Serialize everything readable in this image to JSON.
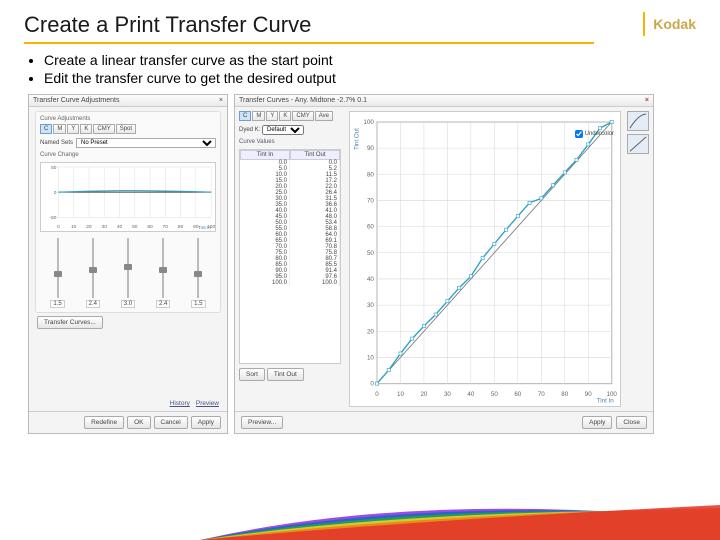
{
  "slide": {
    "title": "Create a Print Transfer Curve",
    "logo_text": "Kodak",
    "accent_color": "#f9b200",
    "bullets": [
      "Create a linear transfer curve as the start point",
      "Edit the transfer curve to get the desired output"
    ]
  },
  "left_dialog": {
    "type": "dialog",
    "title": "Transfer Curve Adjustments",
    "close_glyph": "×",
    "group_label": "Curve Adjustments",
    "channels": [
      "C",
      "M",
      "Y",
      "K",
      "CMY",
      "Spot"
    ],
    "selected_channel": "C",
    "row_label": "Named Sets",
    "select_value": "No Preset",
    "adjust_chart": {
      "type": "line",
      "xlim": [
        0,
        100
      ],
      "ylim": [
        -50,
        50
      ],
      "xticks": [
        0,
        10,
        20,
        30,
        40,
        50,
        60,
        70,
        80,
        90,
        100
      ],
      "yticks": [
        -50,
        0,
        50
      ],
      "ytick_labels": [
        "-50",
        "0",
        "50"
      ],
      "xlabel": "Tint In",
      "label_color": "#4a82b6",
      "grid_color": "#dddddd",
      "cyan_series": [
        0,
        1,
        2,
        2.5,
        3,
        3,
        2.8,
        2.4,
        1.8,
        1,
        0
      ],
      "black_series": [
        0,
        0,
        0,
        0,
        0,
        0,
        0,
        0,
        0,
        0,
        0
      ],
      "cyan_color": "#2aa0c8",
      "black_color": "#444444",
      "line_width": 1
    },
    "slider_values": [
      "1.5",
      "2.4",
      "3.0",
      "2.4",
      "1.5"
    ],
    "slider_thumb_pos": [
      0.55,
      0.48,
      0.44,
      0.48,
      0.55
    ],
    "section_label": "Curve Change",
    "transfer_link": "Transfer Curves...",
    "history_link": "History",
    "preview_link": "Preview",
    "footer_buttons": [
      "Redefine",
      "OK",
      "Cancel",
      "Apply"
    ]
  },
  "right_dialog": {
    "type": "dialog",
    "title": "Transfer Curves - Any. Midtone -2.7% 0.1",
    "close_glyph": "×",
    "close_color": "#c04040",
    "channels": [
      "C",
      "M",
      "Y",
      "K",
      "CMY",
      "Ave"
    ],
    "selected_channel": "C",
    "preset_label": "Dyed K:",
    "preset_value": "Default",
    "table_header": [
      "Tint In",
      "Tint Out"
    ],
    "curve_label": "Curve Values",
    "table_rows": [
      [
        0.0,
        0.0
      ],
      [
        5.0,
        5.2
      ],
      [
        10.0,
        11.5
      ],
      [
        15.0,
        17.2
      ],
      [
        20.0,
        22.0
      ],
      [
        25.0,
        26.4
      ],
      [
        30.0,
        31.5
      ],
      [
        35.0,
        36.6
      ],
      [
        40.0,
        41.0
      ],
      [
        45.0,
        48.0
      ],
      [
        50.0,
        53.4
      ],
      [
        55.0,
        58.8
      ],
      [
        60.0,
        64.0
      ],
      [
        65.0,
        69.1
      ],
      [
        70.0,
        70.8
      ],
      [
        75.0,
        75.8
      ],
      [
        80.0,
        80.7
      ],
      [
        85.0,
        85.5
      ],
      [
        90.0,
        91.4
      ],
      [
        95.0,
        97.6
      ],
      [
        100.0,
        100.0
      ]
    ],
    "main_chart": {
      "type": "line",
      "xlim": [
        0,
        100
      ],
      "ylim": [
        0,
        100
      ],
      "ticks": [
        0,
        10,
        20,
        30,
        40,
        50,
        60,
        70,
        80,
        90,
        100
      ],
      "xlabel": "Tint In",
      "ylabel": "Tint Out",
      "label_color": "#4a82b6",
      "grid_color": "#d8d8d8",
      "background_color": "#ffffff",
      "curve_cyan": [
        0,
        5.2,
        11.5,
        17.2,
        22,
        26.4,
        31.5,
        36.6,
        41,
        48,
        53.4,
        58.8,
        64,
        69.1,
        70.8,
        75.8,
        80.7,
        85.5,
        91.4,
        97.6,
        100
      ],
      "cyan_color": "#2aa0c8",
      "diag_color": "#777777",
      "line_width": 1
    },
    "checkbox_label": "Undercolor",
    "checkbox_checked": true,
    "left_small_buttons": [
      "Sort",
      "Tint Out"
    ],
    "preview_button": "Preview...",
    "footer_buttons": [
      "Apply",
      "Close"
    ]
  },
  "swoosh_colors": [
    "#8a2be2",
    "#1e63c8",
    "#1aa84a",
    "#f4d21f",
    "#f07c1b",
    "#e0342a"
  ]
}
